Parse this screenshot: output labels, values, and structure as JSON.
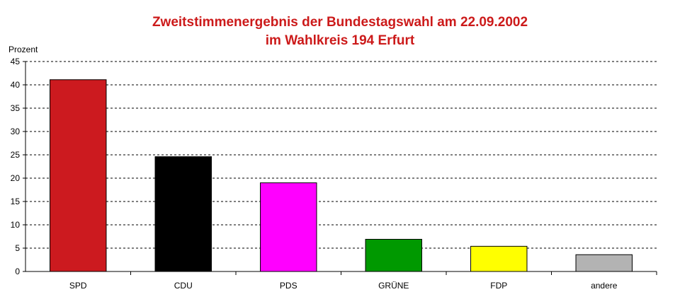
{
  "chart_data": {
    "type": "bar",
    "title": "Zweitstimmenergebnis der Bundestagswahl am 22.09.2002",
    "subtitle": "im Wahlkreis 194 Erfurt",
    "ylabel": "Prozent",
    "xlabel": "",
    "categories": [
      "SPD",
      "CDU",
      "PDS",
      "GRÜNE",
      "FDP",
      "andere"
    ],
    "values": [
      41.1,
      24.6,
      19.0,
      6.9,
      5.4,
      3.6
    ],
    "colors": [
      "#cc1a1f",
      "#000000",
      "#ff00ff",
      "#009900",
      "#ffff00",
      "#b3b3b3"
    ],
    "ylim": [
      0,
      45
    ],
    "yticks": [
      0,
      5,
      10,
      15,
      20,
      25,
      30,
      35,
      40,
      45
    ],
    "grid": true,
    "legend": "none"
  }
}
